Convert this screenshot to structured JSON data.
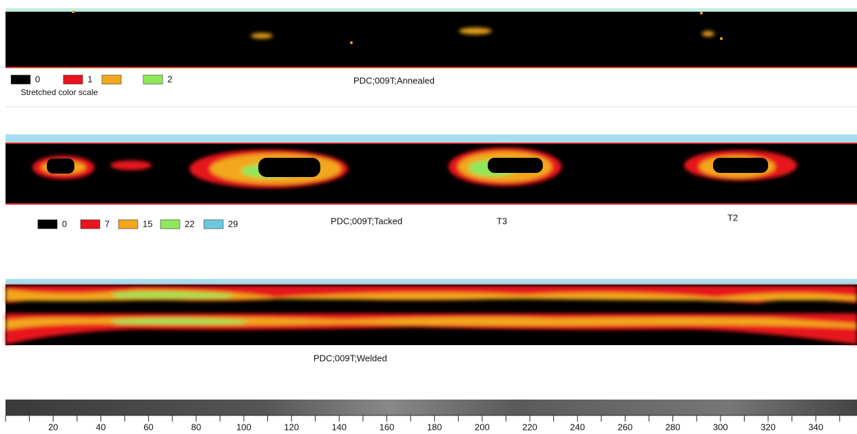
{
  "panels": [
    {
      "title": "PDC;009T;Annealed",
      "legend": [
        {
          "label": "0",
          "color": "#000000"
        },
        {
          "label": "1",
          "color": "#e8141c"
        },
        {
          "color": "#f2a81c"
        },
        {
          "label": "2",
          "color": "#8ee85a"
        }
      ],
      "note": "Stretched color scale"
    },
    {
      "title": "PDC;009T;Tacked",
      "legend": [
        {
          "label": "0",
          "color": "#000000"
        },
        {
          "label": "7",
          "color": "#e8141c"
        },
        {
          "label": "15",
          "color": "#f2a81c"
        },
        {
          "label": "22",
          "color": "#8ee85a"
        },
        {
          "label": "29",
          "color": "#6cc8e0"
        }
      ],
      "annotations": [
        "T3",
        "T2"
      ]
    },
    {
      "title": "PDC;009T;Welded"
    }
  ],
  "axis": {
    "xlim": [
      0,
      357
    ],
    "ticks": [
      20,
      40,
      60,
      80,
      100,
      120,
      140,
      160,
      180,
      200,
      220,
      240,
      260,
      280,
      300,
      320,
      340
    ],
    "minor_ticks": [
      0,
      10,
      30,
      50,
      70,
      90,
      110,
      130,
      150,
      170,
      190,
      210,
      230,
      250,
      270,
      290,
      310,
      330,
      350
    ]
  }
}
